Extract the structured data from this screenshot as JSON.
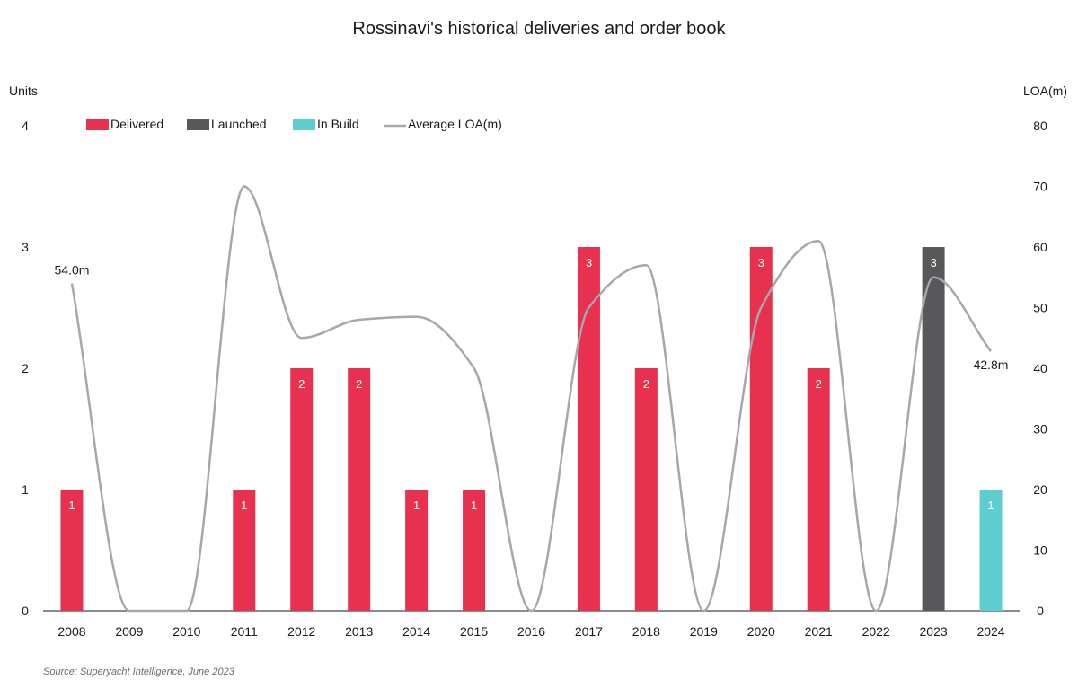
{
  "chart_data": {
    "type": "bar",
    "title": "Rossinavi's historical deliveries and order book",
    "y_left_label": "Units",
    "y_right_label": "LOA(m)",
    "y_left_lim": [
      0,
      4
    ],
    "y_left_ticks": [
      "0",
      "1",
      "2",
      "3",
      "4"
    ],
    "y_right_lim": [
      0,
      80
    ],
    "y_right_ticks": [
      "0",
      "10",
      "20",
      "30",
      "40",
      "50",
      "60",
      "70",
      "80"
    ],
    "categories": [
      "2008",
      "2009",
      "2010",
      "2011",
      "2012",
      "2013",
      "2014",
      "2015",
      "2016",
      "2017",
      "2018",
      "2019",
      "2020",
      "2021",
      "2022",
      "2023",
      "2024"
    ],
    "series": [
      {
        "name": "Delivered",
        "kind": "bar",
        "color": "#e8304f",
        "values": [
          1,
          0,
          0,
          1,
          2,
          2,
          1,
          1,
          0,
          3,
          2,
          0,
          3,
          2,
          0,
          0,
          0
        ]
      },
      {
        "name": "Launched",
        "kind": "bar",
        "color": "#58585a",
        "values": [
          0,
          0,
          0,
          0,
          0,
          0,
          0,
          0,
          0,
          0,
          0,
          0,
          0,
          0,
          0,
          3,
          0
        ]
      },
      {
        "name": "In Build",
        "kind": "bar",
        "color": "#5ecdd0",
        "values": [
          0,
          0,
          0,
          0,
          0,
          0,
          0,
          0,
          0,
          0,
          0,
          0,
          0,
          0,
          0,
          0,
          1
        ]
      },
      {
        "name": "Average LOA(m)",
        "kind": "line",
        "axis": "right",
        "color": "#a7a6ab",
        "values": [
          54.0,
          0,
          0,
          70,
          45,
          48,
          48.5,
          40,
          0,
          50,
          57,
          0,
          50,
          61,
          0,
          55,
          42.8
        ]
      }
    ],
    "line_end_labels": {
      "first": "54.0m",
      "last": "42.8m"
    },
    "legend_position": "top-left",
    "grid": false,
    "source": "Source: Superyacht Intelligence, June 2023"
  }
}
